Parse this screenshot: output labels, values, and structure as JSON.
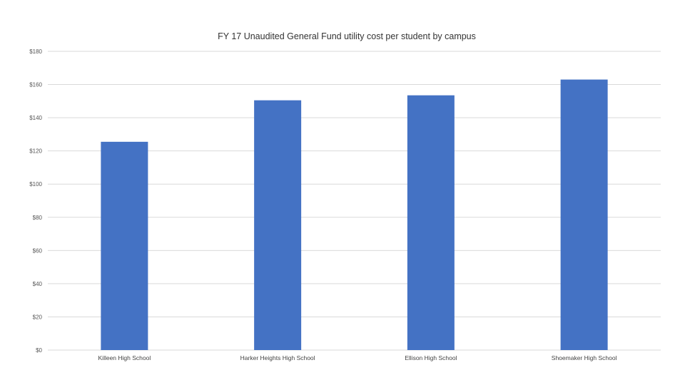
{
  "chart_data": {
    "type": "bar",
    "title": "FY 17 Unaudited General Fund utility cost per student by campus",
    "xlabel": "",
    "ylabel": "",
    "categories": [
      "Killeen High School",
      "Harker Heights High School",
      "Ellison High School",
      "Shoemaker High School"
    ],
    "values": [
      125.5,
      150.5,
      153.5,
      163
    ],
    "ylim": [
      0,
      180
    ],
    "yticks": [
      0,
      20,
      40,
      60,
      80,
      100,
      120,
      140,
      160,
      180
    ],
    "ytick_labels": [
      "$0",
      "$20",
      "$40",
      "$60",
      "$80",
      "$100",
      "$120",
      "$140",
      "$160",
      "$180"
    ],
    "grid": true,
    "legend": "none",
    "bar_color": "#4472C4"
  }
}
